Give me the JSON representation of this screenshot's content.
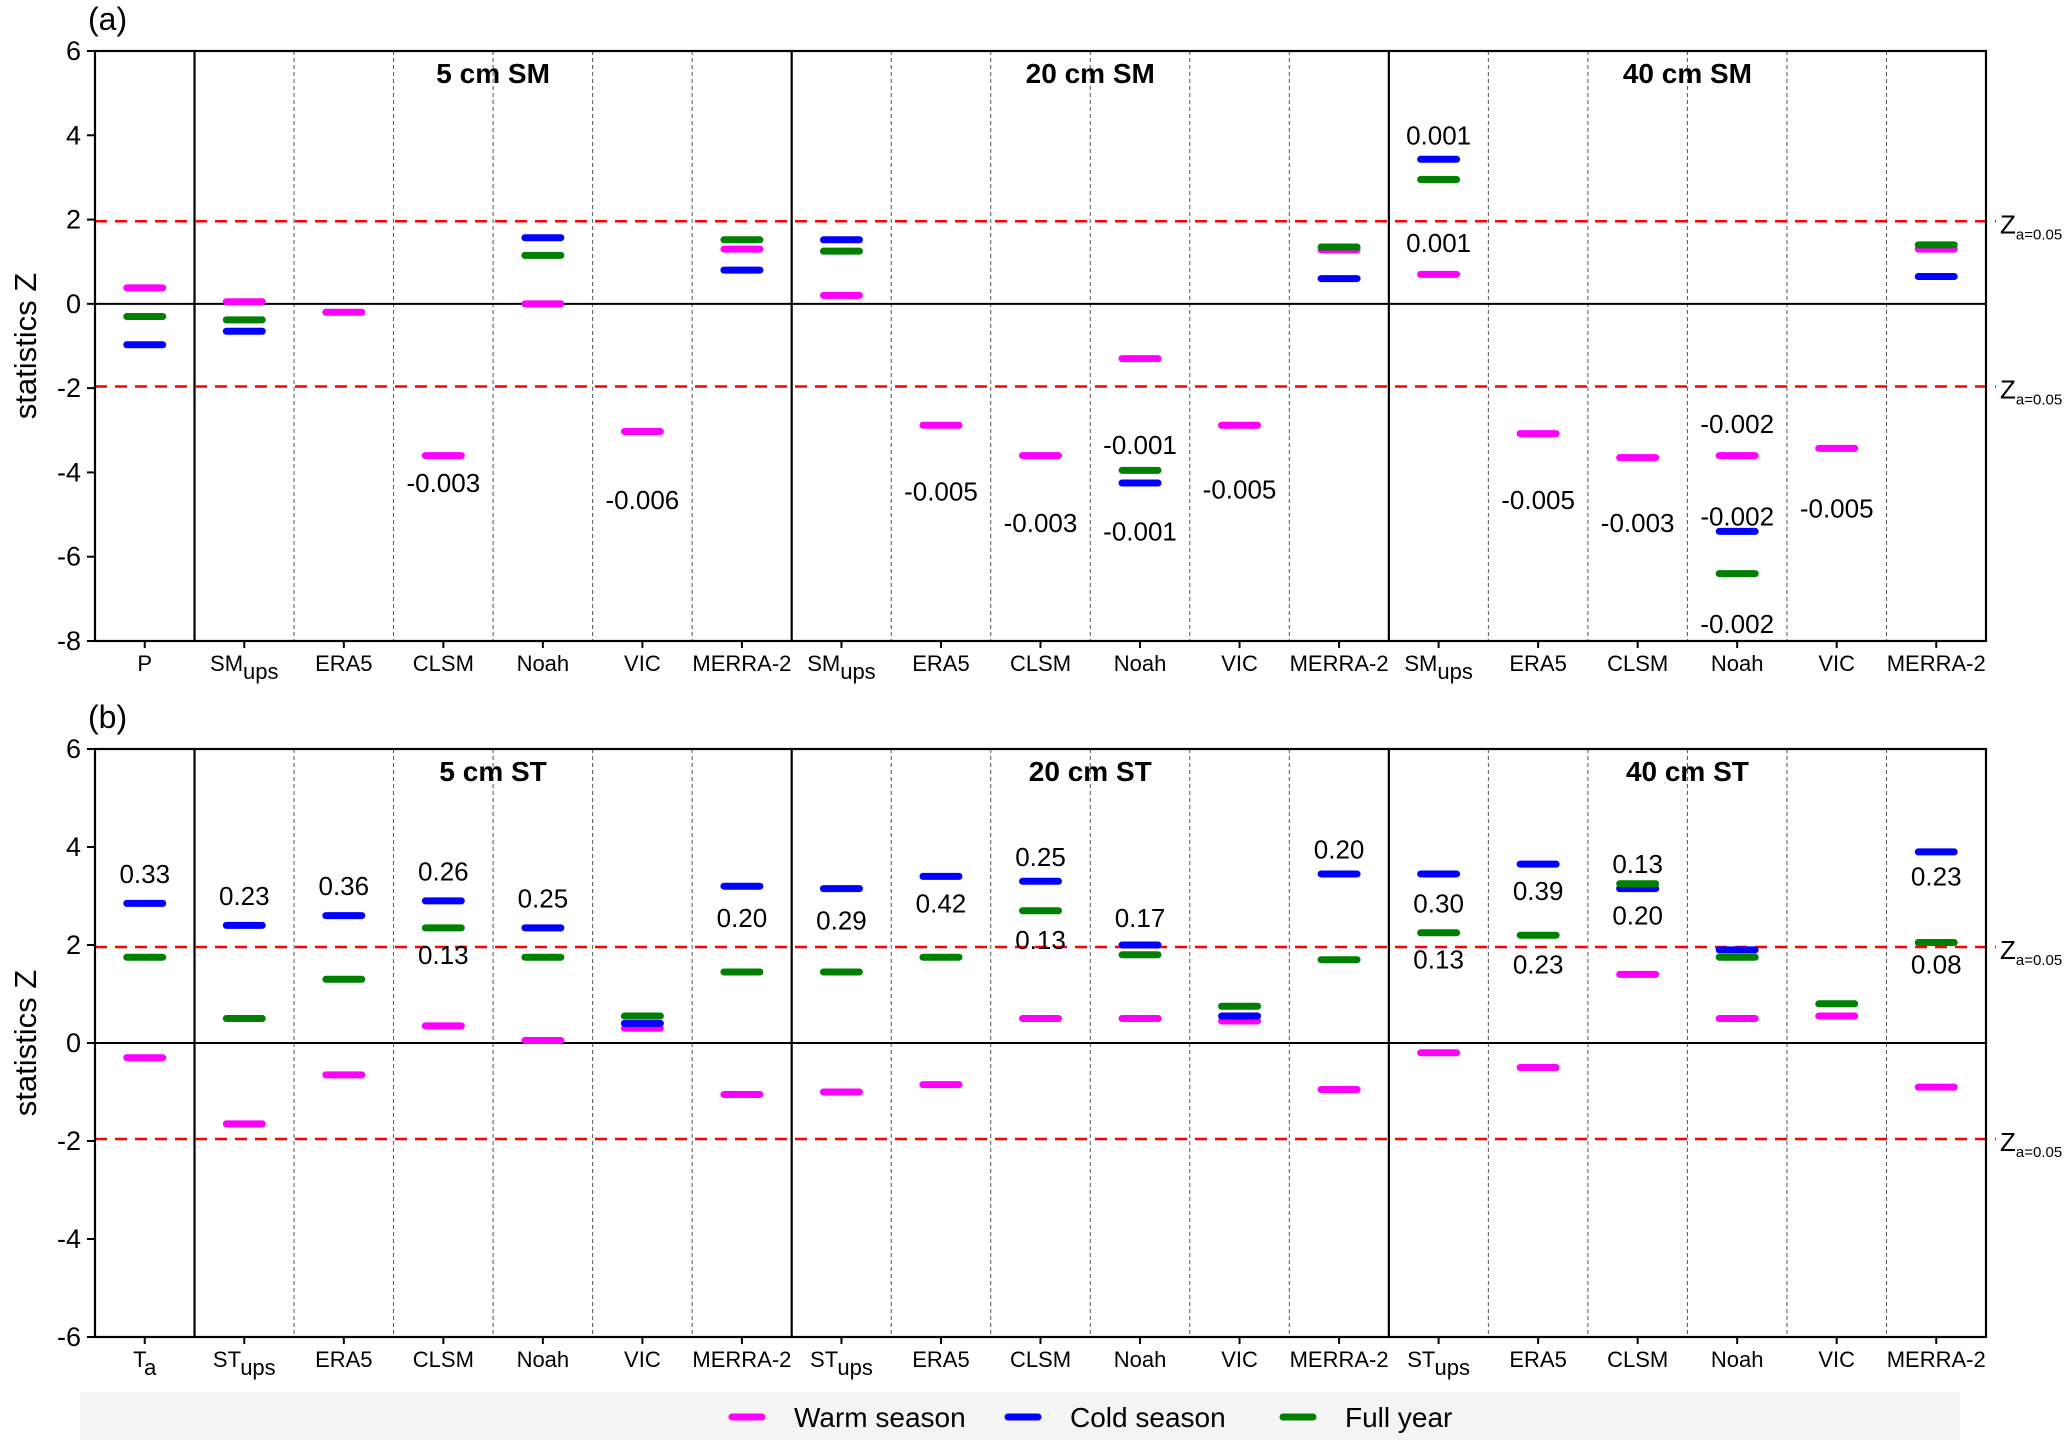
{
  "colors": {
    "warm": "#ff00ff",
    "cold": "#0000ff",
    "full": "#008000",
    "threshold": "#ff0000"
  },
  "legend": {
    "items": [
      {
        "key": "warm",
        "label": "Warm season"
      },
      {
        "key": "cold",
        "label": "Cold season"
      },
      {
        "key": "full",
        "label": "Full year"
      }
    ]
  },
  "threshold_label": {
    "main": "Z",
    "sub": "a=0.05"
  },
  "chart_data": [
    {
      "type": "scatter",
      "panel_label": "(a)",
      "ylabel": "statistics Z",
      "ylim": [
        -8,
        6
      ],
      "yticks": [
        -8,
        -6,
        -4,
        -2,
        0,
        2,
        4,
        6
      ],
      "thresholds": [
        1.96,
        -1.96
      ],
      "groups": [
        {
          "title": "5 cm SM",
          "start": 1,
          "end": 6
        },
        {
          "title": "20 cm SM",
          "start": 7,
          "end": 12
        },
        {
          "title": "40 cm SM",
          "start": 13,
          "end": 18
        }
      ],
      "categories": [
        {
          "label": "P",
          "sub": ""
        },
        {
          "label": "SM",
          "sub": "ups"
        },
        {
          "label": "ERA5",
          "sub": ""
        },
        {
          "label": "CLSM",
          "sub": ""
        },
        {
          "label": "Noah",
          "sub": ""
        },
        {
          "label": "VIC",
          "sub": ""
        },
        {
          "label": "MERRA-2",
          "sub": ""
        },
        {
          "label": "SM",
          "sub": "ups"
        },
        {
          "label": "ERA5",
          "sub": ""
        },
        {
          "label": "CLSM",
          "sub": ""
        },
        {
          "label": "Noah",
          "sub": ""
        },
        {
          "label": "VIC",
          "sub": ""
        },
        {
          "label": "MERRA-2",
          "sub": ""
        },
        {
          "label": "SM",
          "sub": "ups"
        },
        {
          "label": "ERA5",
          "sub": ""
        },
        {
          "label": "CLSM",
          "sub": ""
        },
        {
          "label": "Noah",
          "sub": ""
        },
        {
          "label": "VIC",
          "sub": ""
        },
        {
          "label": "MERRA-2",
          "sub": ""
        }
      ],
      "series": [
        {
          "name": "Warm season",
          "key": "warm",
          "values": [
            0.38,
            0.05,
            -0.2,
            -3.6,
            0.0,
            -3.03,
            1.3,
            0.2,
            -2.88,
            -3.6,
            -1.3,
            -2.88,
            1.28,
            0.7,
            -3.08,
            -3.65,
            -3.6,
            -3.43,
            1.3
          ]
        },
        {
          "name": "Cold season",
          "key": "cold",
          "values": [
            -0.97,
            -0.65,
            null,
            null,
            1.57,
            null,
            0.8,
            1.52,
            null,
            null,
            -4.25,
            null,
            0.6,
            3.43,
            null,
            null,
            -5.4,
            null,
            0.65
          ]
        },
        {
          "name": "Full year",
          "key": "full",
          "values": [
            -0.3,
            -0.38,
            null,
            null,
            1.15,
            null,
            1.52,
            1.25,
            null,
            null,
            -3.95,
            null,
            1.35,
            2.95,
            null,
            null,
            -6.4,
            null,
            1.4
          ]
        }
      ],
      "annotations": [
        {
          "cat": 3,
          "y": -4.25,
          "text": "-0.003"
        },
        {
          "cat": 5,
          "y": -4.65,
          "text": "-0.006"
        },
        {
          "cat": 8,
          "y": -4.45,
          "text": "-0.005"
        },
        {
          "cat": 9,
          "y": -5.2,
          "text": "-0.003"
        },
        {
          "cat": 10,
          "y": -3.35,
          "text": "-0.001"
        },
        {
          "cat": 10,
          "y": -5.4,
          "text": "-0.001"
        },
        {
          "cat": 11,
          "y": -4.4,
          "text": "-0.005"
        },
        {
          "cat": 13,
          "y": 4.0,
          "text": "0.001"
        },
        {
          "cat": 13,
          "y": 1.45,
          "text": "0.001"
        },
        {
          "cat": 14,
          "y": -4.65,
          "text": "-0.005"
        },
        {
          "cat": 15,
          "y": -5.2,
          "text": "-0.003"
        },
        {
          "cat": 16,
          "y": -2.85,
          "text": "-0.002"
        },
        {
          "cat": 16,
          "y": -5.05,
          "text": "-0.002"
        },
        {
          "cat": 16,
          "y": -7.6,
          "text": "-0.002"
        },
        {
          "cat": 17,
          "y": -4.85,
          "text": "-0.005"
        }
      ]
    },
    {
      "type": "scatter",
      "panel_label": "(b)",
      "ylabel": "statistics Z",
      "ylim": [
        -6,
        6
      ],
      "yticks": [
        -6,
        -4,
        -2,
        0,
        2,
        4,
        6
      ],
      "thresholds": [
        1.96,
        -1.96
      ],
      "groups": [
        {
          "title": "5 cm ST",
          "start": 1,
          "end": 6
        },
        {
          "title": "20 cm ST",
          "start": 7,
          "end": 12
        },
        {
          "title": "40 cm ST",
          "start": 13,
          "end": 18
        }
      ],
      "categories": [
        {
          "label": "T",
          "sub": "a"
        },
        {
          "label": "ST",
          "sub": "ups"
        },
        {
          "label": "ERA5",
          "sub": ""
        },
        {
          "label": "CLSM",
          "sub": ""
        },
        {
          "label": "Noah",
          "sub": ""
        },
        {
          "label": "VIC",
          "sub": ""
        },
        {
          "label": "MERRA-2",
          "sub": ""
        },
        {
          "label": "ST",
          "sub": "ups"
        },
        {
          "label": "ERA5",
          "sub": ""
        },
        {
          "label": "CLSM",
          "sub": ""
        },
        {
          "label": "Noah",
          "sub": ""
        },
        {
          "label": "VIC",
          "sub": ""
        },
        {
          "label": "MERRA-2",
          "sub": ""
        },
        {
          "label": "ST",
          "sub": "ups"
        },
        {
          "label": "ERA5",
          "sub": ""
        },
        {
          "label": "CLSM",
          "sub": ""
        },
        {
          "label": "Noah",
          "sub": ""
        },
        {
          "label": "VIC",
          "sub": ""
        },
        {
          "label": "MERRA-2",
          "sub": ""
        }
      ],
      "series": [
        {
          "name": "Warm season",
          "key": "warm",
          "values": [
            -0.3,
            -1.65,
            -0.65,
            0.35,
            0.05,
            0.3,
            -1.05,
            -1.0,
            -0.85,
            0.5,
            0.5,
            0.45,
            -0.95,
            -0.2,
            -0.5,
            1.4,
            0.5,
            0.55,
            -0.9
          ]
        },
        {
          "name": "Cold season",
          "key": "cold",
          "values": [
            2.85,
            2.4,
            2.6,
            2.9,
            2.35,
            0.4,
            3.2,
            3.15,
            3.4,
            3.3,
            2.0,
            0.55,
            3.45,
            3.45,
            3.65,
            3.15,
            1.9,
            null,
            3.9
          ]
        },
        {
          "name": "Full year",
          "key": "full",
          "values": [
            1.75,
            0.5,
            1.3,
            2.35,
            1.75,
            0.55,
            1.45,
            1.45,
            1.75,
            2.7,
            1.8,
            0.75,
            1.7,
            2.25,
            2.2,
            3.25,
            1.75,
            0.8,
            2.05
          ]
        }
      ],
      "annotations": [
        {
          "cat": 0,
          "y": 3.45,
          "text": "0.33"
        },
        {
          "cat": 1,
          "y": 3.0,
          "text": "0.23"
        },
        {
          "cat": 2,
          "y": 3.2,
          "text": "0.36"
        },
        {
          "cat": 3,
          "y": 3.5,
          "text": "0.26"
        },
        {
          "cat": 3,
          "y": 1.8,
          "text": "0.13"
        },
        {
          "cat": 4,
          "y": 2.95,
          "text": "0.25"
        },
        {
          "cat": 6,
          "y": 2.55,
          "text": "0.20"
        },
        {
          "cat": 7,
          "y": 2.5,
          "text": "0.29"
        },
        {
          "cat": 8,
          "y": 2.85,
          "text": "0.42"
        },
        {
          "cat": 9,
          "y": 3.8,
          "text": "0.25"
        },
        {
          "cat": 9,
          "y": 2.1,
          "text": "0.13"
        },
        {
          "cat": 10,
          "y": 2.55,
          "text": "0.17"
        },
        {
          "cat": 12,
          "y": 3.95,
          "text": "0.20"
        },
        {
          "cat": 13,
          "y": 2.85,
          "text": "0.30"
        },
        {
          "cat": 13,
          "y": 1.7,
          "text": "0.13"
        },
        {
          "cat": 14,
          "y": 3.1,
          "text": "0.39"
        },
        {
          "cat": 14,
          "y": 1.6,
          "text": "0.23"
        },
        {
          "cat": 15,
          "y": 3.65,
          "text": "0.13"
        },
        {
          "cat": 15,
          "y": 2.6,
          "text": "0.20"
        },
        {
          "cat": 18,
          "y": 3.4,
          "text": "0.23"
        },
        {
          "cat": 18,
          "y": 1.6,
          "text": "0.08"
        }
      ]
    }
  ]
}
